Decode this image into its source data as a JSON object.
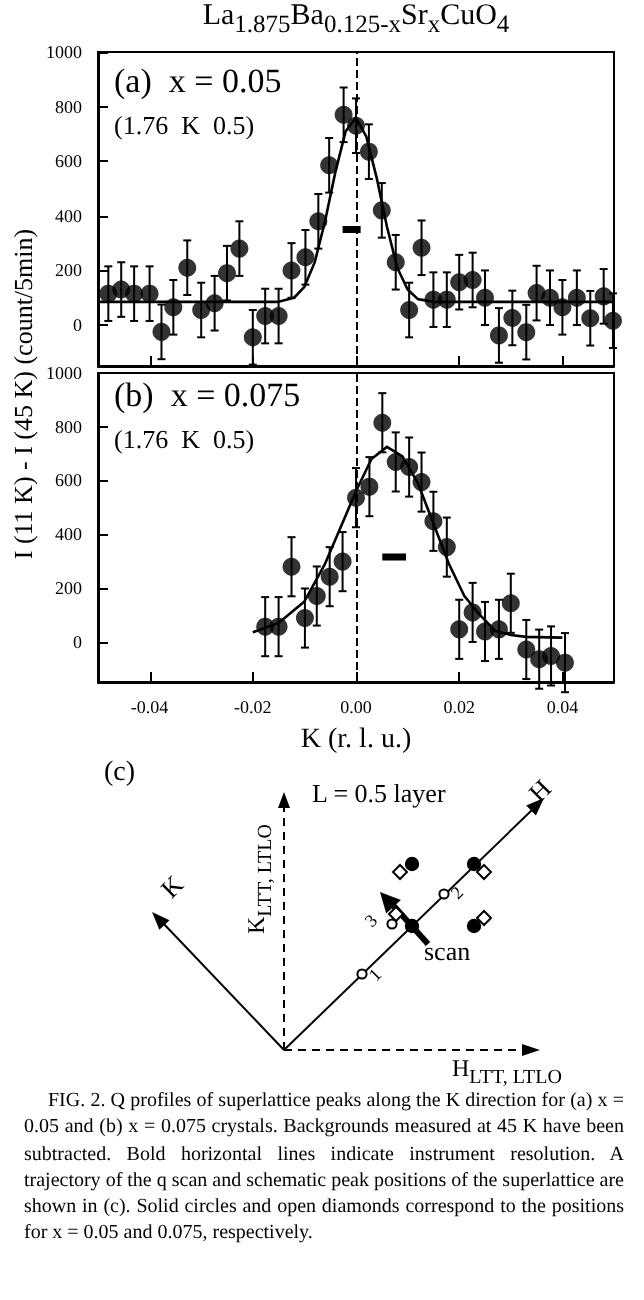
{
  "chart_data": [
    {
      "type": "scatter",
      "title": "La$_{1.875}$Ba$_{0.125-x}$Sr$_{x}$CuO$_{4}$",
      "annotations": [
        "(a)  x = 0.05",
        "(1.76  K  0.5)"
      ],
      "xlim": [
        -0.05,
        0.05
      ],
      "xticks": [
        -0.04,
        -0.02,
        0,
        0.02,
        0.04
      ],
      "ylim": [
        -150,
        1000
      ],
      "yticks": [
        0,
        200,
        400,
        600,
        800,
        1000
      ],
      "tick_labels": "y",
      "marker": "circle",
      "ref_lines": [
        {
          "axis": "x",
          "value": 0,
          "line_style": "dashed",
          "color": "#000000"
        }
      ],
      "series": [
        {
          "type": "scatter",
          "color": "#000000",
          "x": [
            -0.048,
            -0.0455,
            -0.043,
            -0.04,
            -0.0377,
            -0.0354,
            -0.0327,
            -0.03,
            -0.0274,
            -0.025,
            -0.0226,
            -0.02,
            -0.0176,
            -0.015,
            -0.0125,
            -0.0098,
            -0.0073,
            -0.0052,
            -0.0024,
            0.0,
            0.0025,
            0.005,
            0.0077,
            0.0103,
            0.0127,
            0.015,
            0.0176,
            0.02,
            0.0226,
            0.025,
            0.0277,
            0.0303,
            0.033,
            0.035,
            0.0376,
            0.04,
            0.0428,
            0.0454,
            0.048,
            0.0498
          ],
          "values": [
            115,
            130,
            115,
            115,
            -25,
            65,
            210,
            55,
            80,
            190,
            280,
            -45,
            33,
            33,
            200,
            248,
            380,
            585,
            770,
            730,
            635,
            420,
            230,
            55,
            283,
            93,
            93,
            157,
            165,
            100,
            -38,
            26,
            -26,
            117,
            100,
            65,
            100,
            25,
            105,
            16
          ],
          "errors": [
            100,
            100,
            100,
            100,
            100,
            100,
            100,
            100,
            100,
            100,
            100,
            100,
            100,
            100,
            100,
            100,
            100,
            100,
            100,
            100,
            100,
            100,
            100,
            100,
            100,
            100,
            100,
            100,
            100,
            100,
            100,
            100,
            100,
            100,
            100,
            100,
            100,
            100,
            100,
            100
          ]
        },
        {
          "type": "line",
          "color": "#000000",
          "marker": "none",
          "line_style": "solid",
          "x": [
            -0.05,
            -0.015,
            -0.012,
            -0.01,
            -0.008,
            -0.006,
            -0.004,
            -0.002,
            0.0,
            0.002,
            0.004,
            0.006,
            0.008,
            0.01,
            0.012,
            0.015,
            0.05
          ],
          "values": [
            85,
            85,
            100,
            140,
            230,
            380,
            560,
            710,
            760,
            690,
            540,
            360,
            210,
            130,
            95,
            85,
            85
          ]
        },
        {
          "type": "line",
          "color": "#000000",
          "marker": "none",
          "line_style": "solid",
          "x": [
            -0.0026,
            0.0009
          ],
          "values": [
            350,
            350
          ]
        }
      ]
    },
    {
      "type": "scatter",
      "xlabel": "K (r. l. u.)",
      "ylabel": "I (11 K) - I (45 K) (count/5min)",
      "annotations": [
        "(b)  x = 0.075",
        "(1.76  K  0.5)"
      ],
      "xlim": [
        -0.05,
        0.05
      ],
      "xticks": [
        -0.04,
        -0.02,
        {
          "value": 0,
          "label": "0.00"
        },
        0.02,
        0.04
      ],
      "ylim": [
        -150,
        1000
      ],
      "yticks": [
        0,
        200,
        400,
        600,
        800,
        1000
      ],
      "marker": "circle",
      "ref_lines": [
        {
          "axis": "x",
          "value": 0,
          "line_style": "dashed",
          "color": "#000000"
        }
      ],
      "series": [
        {
          "type": "scatter",
          "color": "#000000",
          "x": [
            -0.0176,
            -0.015,
            -0.0125,
            -0.0099,
            -0.0076,
            -0.0051,
            -0.0026,
            0.0,
            0.0026,
            0.0051,
            0.0077,
            0.0103,
            0.0127,
            0.015,
            0.0176,
            0.02,
            0.0226,
            0.025,
            0.0277,
            0.03,
            0.033,
            0.0355,
            0.0378,
            0.0405
          ],
          "values": [
            56,
            56,
            279,
            88,
            170,
            242,
            298,
            536,
            577,
            815,
            669,
            650,
            594,
            448,
            352,
            46,
            109,
            38,
            46,
            143,
            -29,
            -65,
            -53,
            -78
          ],
          "errors": [
            110,
            110,
            110,
            110,
            110,
            110,
            110,
            110,
            110,
            110,
            110,
            110,
            110,
            110,
            110,
            110,
            110,
            110,
            110,
            110,
            110,
            110,
            110,
            110
          ]
        },
        {
          "type": "line",
          "color": "#000000",
          "marker": "none",
          "line_style": "solid",
          "x": [
            -0.02,
            -0.015,
            -0.01,
            -0.006,
            -0.002,
            0.0,
            0.003,
            0.006,
            0.009,
            0.012,
            0.015,
            0.018,
            0.021,
            0.024,
            0.027,
            0.03,
            0.033,
            0.04
          ],
          "values": [
            35,
            70,
            150,
            290,
            470,
            560,
            680,
            725,
            690,
            590,
            440,
            290,
            170,
            100,
            40,
            25,
            18,
            15
          ]
        },
        {
          "type": "line",
          "color": "#000000",
          "marker": "none",
          "line_style": "solid",
          "x": [
            0.0051,
            0.0097
          ],
          "values": [
            315,
            315
          ]
        }
      ]
    },
    {
      "type": "other",
      "annotations": [
        "(c)",
        "L = 0.5 layer",
        "K$_{LTT, LTLO}$",
        "H$_{LTT, LTLO}$",
        "K",
        "H",
        "scan",
        "1",
        "2",
        "3",
        "FIG. 2. Q profiles of superlattice peaks along the K direction for (a) x = 0.05 and (b) x = 0.075 crystals. Backgrounds measured at 45 K have been subtracted. Bold horizontal lines indicate instrument resolution. A trajectory of the q scan and schematic peak positions of the superlattice are shown in (c). Solid circles and open diamonds correspond to the positions for x = 0.05 and 0.075, respectively."
      ]
    }
  ]
}
